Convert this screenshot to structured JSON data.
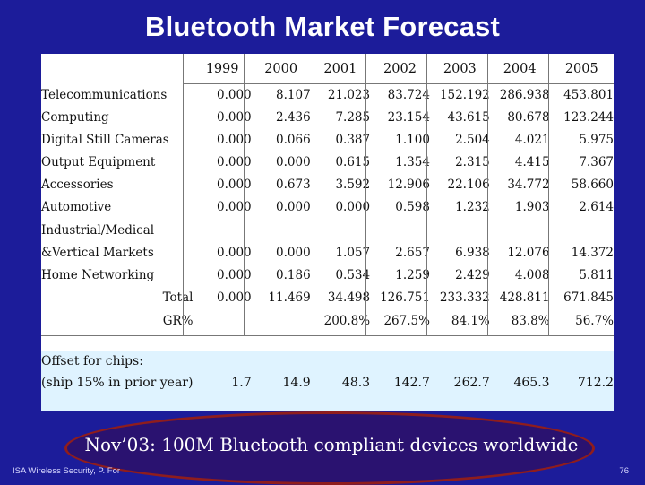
{
  "slide": {
    "title": "Bluetooth Market Forecast",
    "banner": "Nov’03: 100M Bluetooth compliant devices worldwide",
    "footer_left": "ISA Wireless Security, P. For",
    "page_number": "76"
  },
  "table": {
    "years": [
      "1999",
      "2000",
      "2001",
      "2002",
      "2003",
      "2004",
      "2005"
    ],
    "rows": [
      {
        "label": "Telecommunications",
        "values": [
          "0.000",
          "8.107",
          "21.023",
          "83.724",
          "152.192",
          "286.938",
          "453.801"
        ]
      },
      {
        "label": "Computing",
        "values": [
          "0.000",
          "2.436",
          "7.285",
          "23.154",
          "43.615",
          "80.678",
          "123.244"
        ]
      },
      {
        "label": "Digital Still Cameras",
        "values": [
          "0.000",
          "0.066",
          "0.387",
          "1.100",
          "2.504",
          "4.021",
          "5.975"
        ]
      },
      {
        "label": "Output Equipment",
        "values": [
          "0.000",
          "0.000",
          "0.615",
          "1.354",
          "2.315",
          "4.415",
          "7.367"
        ]
      },
      {
        "label": "Accessories",
        "values": [
          "0.000",
          "0.673",
          "3.592",
          "12.906",
          "22.106",
          "34.772",
          "58.660"
        ]
      },
      {
        "label": "Automotive",
        "values": [
          "0.000",
          "0.000",
          "0.000",
          "0.598",
          "1.232",
          "1.903",
          "2.614"
        ]
      },
      {
        "label": "Industrial/Medical",
        "label2": "&Vertical Markets",
        "values": [
          "0.000",
          "0.000",
          "1.057",
          "2.657",
          "6.938",
          "12.076",
          "14.372"
        ]
      },
      {
        "label": "Home Networking",
        "values": [
          "0.000",
          "0.186",
          "0.534",
          "1.259",
          "2.429",
          "4.008",
          "5.811"
        ]
      }
    ],
    "total": {
      "label": "Total",
      "values": [
        "0.000",
        "11.469",
        "34.498",
        "126.751",
        "233.332",
        "428.811",
        "671.845"
      ]
    },
    "growth": {
      "label": "GR%",
      "values": [
        "",
        "",
        "200.8%",
        "267.5%",
        "84.1%",
        "83.8%",
        "56.7%"
      ]
    },
    "offset": {
      "label1": "Offset for chips:",
      "label2": "(ship 15% in prior year)",
      "values": [
        "1.7",
        "14.9",
        "48.3",
        "142.7",
        "262.7",
        "465.3",
        "712.2"
      ]
    }
  }
}
